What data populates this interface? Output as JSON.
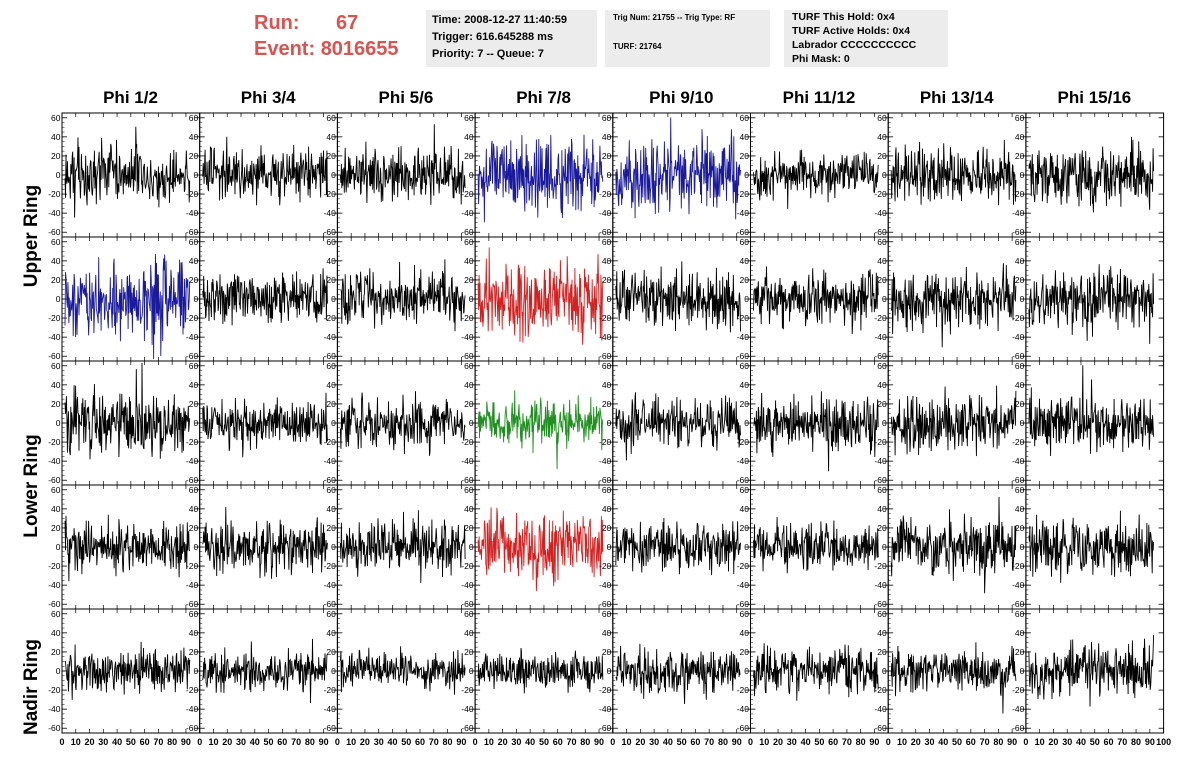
{
  "header": {
    "run_label": "Run:",
    "run_value": "67",
    "event_label": "Event:",
    "event_value": "8016655",
    "box1": [
      "Time: 2008-12-27 11:40:59",
      "Trigger: 616.645288 ms",
      "Priority: 7 -- Queue: 7"
    ],
    "box2": [
      "Trig Num: 21755 -- Trig Type: RF",
      "TURF: 21764"
    ],
    "box3": [
      "TURF This Hold: 0x4",
      "TURF Active Holds: 0x4",
      "Labrador CCCCCCCCCC",
      "Phi Mask: 0"
    ]
  },
  "columns": [
    "Phi 1/2",
    "Phi 3/4",
    "Phi 5/6",
    "Phi 7/8",
    "Phi 9/10",
    "Phi 11/12",
    "Phi 13/14",
    "Phi 15/16"
  ],
  "rows": [
    "Upper Ring",
    "Lower Ring",
    "Nadir Ring"
  ],
  "colors": {
    "default": "#000000",
    "blue": "#1a1a9e",
    "red": "#d62020",
    "green": "#1f8f1f"
  },
  "chart_data": {
    "type": "line",
    "panel_grid": {
      "rows": 5,
      "cols": 8
    },
    "x_range": [
      0,
      100
    ],
    "y_range": [
      -65,
      65
    ],
    "y_ticks": [
      -60,
      -40,
      -20,
      0,
      20,
      40,
      60
    ],
    "x_tick_labels": [
      "0",
      "10",
      "20",
      "30",
      "40",
      "50",
      "60",
      "70",
      "80",
      "90",
      "100"
    ],
    "samples_per_trace": 260,
    "panels": [
      {
        "row": 0,
        "col": 0,
        "color": "default",
        "amplitude": 18
      },
      {
        "row": 0,
        "col": 1,
        "color": "default",
        "amplitude": 16
      },
      {
        "row": 0,
        "col": 2,
        "color": "default",
        "amplitude": 16
      },
      {
        "row": 0,
        "col": 3,
        "color": "blue",
        "amplitude": 22
      },
      {
        "row": 0,
        "col": 4,
        "color": "blue",
        "amplitude": 24
      },
      {
        "row": 0,
        "col": 5,
        "color": "default",
        "amplitude": 14
      },
      {
        "row": 0,
        "col": 6,
        "color": "default",
        "amplitude": 17
      },
      {
        "row": 0,
        "col": 7,
        "color": "default",
        "amplitude": 18
      },
      {
        "row": 1,
        "col": 0,
        "color": "blue",
        "amplitude": 24
      },
      {
        "row": 1,
        "col": 1,
        "color": "default",
        "amplitude": 16
      },
      {
        "row": 1,
        "col": 2,
        "color": "default",
        "amplitude": 16
      },
      {
        "row": 1,
        "col": 3,
        "color": "red",
        "amplitude": 24
      },
      {
        "row": 1,
        "col": 4,
        "color": "default",
        "amplitude": 18
      },
      {
        "row": 1,
        "col": 5,
        "color": "default",
        "amplitude": 16
      },
      {
        "row": 1,
        "col": 6,
        "color": "default",
        "amplitude": 18
      },
      {
        "row": 1,
        "col": 7,
        "color": "default",
        "amplitude": 18
      },
      {
        "row": 2,
        "col": 0,
        "color": "default",
        "amplitude": 20
      },
      {
        "row": 2,
        "col": 1,
        "color": "default",
        "amplitude": 14
      },
      {
        "row": 2,
        "col": 2,
        "color": "default",
        "amplitude": 16
      },
      {
        "row": 2,
        "col": 3,
        "color": "green",
        "amplitude": 15
      },
      {
        "row": 2,
        "col": 4,
        "color": "default",
        "amplitude": 16
      },
      {
        "row": 2,
        "col": 5,
        "color": "default",
        "amplitude": 17
      },
      {
        "row": 2,
        "col": 6,
        "color": "default",
        "amplitude": 18
      },
      {
        "row": 2,
        "col": 7,
        "color": "default",
        "amplitude": 18
      },
      {
        "row": 3,
        "col": 0,
        "color": "default",
        "amplitude": 16
      },
      {
        "row": 3,
        "col": 1,
        "color": "default",
        "amplitude": 16
      },
      {
        "row": 3,
        "col": 2,
        "color": "default",
        "amplitude": 16
      },
      {
        "row": 3,
        "col": 3,
        "color": "red",
        "amplitude": 20
      },
      {
        "row": 3,
        "col": 4,
        "color": "default",
        "amplitude": 16
      },
      {
        "row": 3,
        "col": 5,
        "color": "default",
        "amplitude": 14
      },
      {
        "row": 3,
        "col": 6,
        "color": "default",
        "amplitude": 16
      },
      {
        "row": 3,
        "col": 7,
        "color": "default",
        "amplitude": 18
      },
      {
        "row": 4,
        "col": 0,
        "color": "default",
        "amplitude": 14
      },
      {
        "row": 4,
        "col": 1,
        "color": "default",
        "amplitude": 12
      },
      {
        "row": 4,
        "col": 2,
        "color": "default",
        "amplitude": 12
      },
      {
        "row": 4,
        "col": 3,
        "color": "default",
        "amplitude": 12
      },
      {
        "row": 4,
        "col": 4,
        "color": "default",
        "amplitude": 14
      },
      {
        "row": 4,
        "col": 5,
        "color": "default",
        "amplitude": 15
      },
      {
        "row": 4,
        "col": 6,
        "color": "default",
        "amplitude": 14
      },
      {
        "row": 4,
        "col": 7,
        "color": "default",
        "amplitude": 16
      }
    ]
  }
}
